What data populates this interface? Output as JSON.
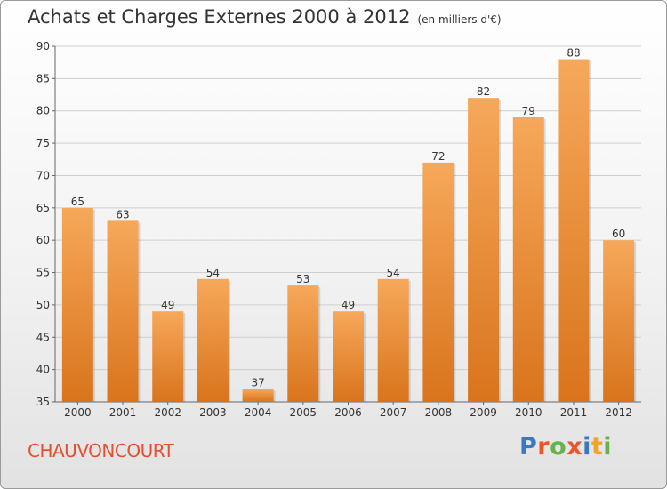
{
  "header": {
    "title": "Achats et Charges Externes 2000 à 2012",
    "unit": "(en milliers d'€)"
  },
  "location": "CHAUVONCOURT",
  "logo": {
    "text": "Proxiti",
    "letters": [
      {
        "ch": "P",
        "color": "#3a78c2"
      },
      {
        "ch": "r",
        "color": "#e8562a"
      },
      {
        "ch": "o",
        "color": "#6ab04c"
      },
      {
        "ch": "x",
        "color": "#e8562a"
      },
      {
        "ch": "i",
        "color": "#3a78c2"
      },
      {
        "ch": "t",
        "color": "#f2a324"
      },
      {
        "ch": "i",
        "color": "#6ab04c"
      }
    ]
  },
  "colors": {
    "bar_top": "#f6a85a",
    "bar_bottom": "#d9741c",
    "grid": "#cfcfcf",
    "axis_text": "#333333"
  },
  "chart_data": {
    "type": "bar",
    "title": "Achats et Charges Externes 2000 à 2012",
    "subtitle": "(en milliers d'€)",
    "categories": [
      "2000",
      "2001",
      "2002",
      "2003",
      "2004",
      "2005",
      "2006",
      "2007",
      "2008",
      "2009",
      "2010",
      "2011",
      "2012"
    ],
    "values": [
      65,
      63,
      49,
      54,
      37,
      53,
      49,
      54,
      72,
      82,
      79,
      88,
      60
    ],
    "ylim": [
      35,
      90
    ],
    "yticks": [
      35,
      40,
      45,
      50,
      55,
      60,
      65,
      70,
      75,
      80,
      85,
      90
    ],
    "grid": true,
    "data_labels": true
  }
}
